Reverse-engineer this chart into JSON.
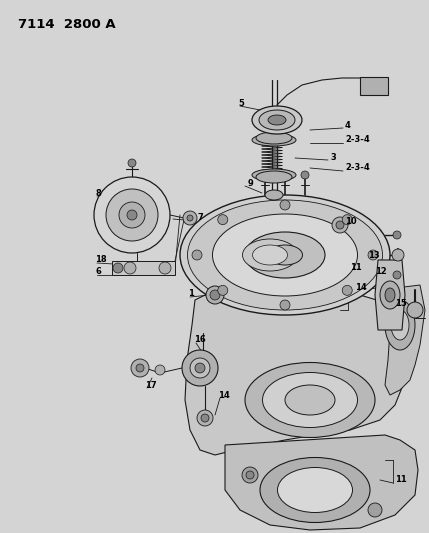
{
  "title": "7114  2800 A",
  "title_fontsize": 9.5,
  "title_fontweight": "bold",
  "bg_color": "#c8c8c8",
  "line_color": "#1a1a1a",
  "label_color": "#000000",
  "white": "#ffffff",
  "light_gray": "#d8d8d8",
  "mid_gray": "#b0b0b0",
  "dark_gray": "#888888",
  "figsize": [
    4.29,
    5.33
  ],
  "dpi": 100
}
